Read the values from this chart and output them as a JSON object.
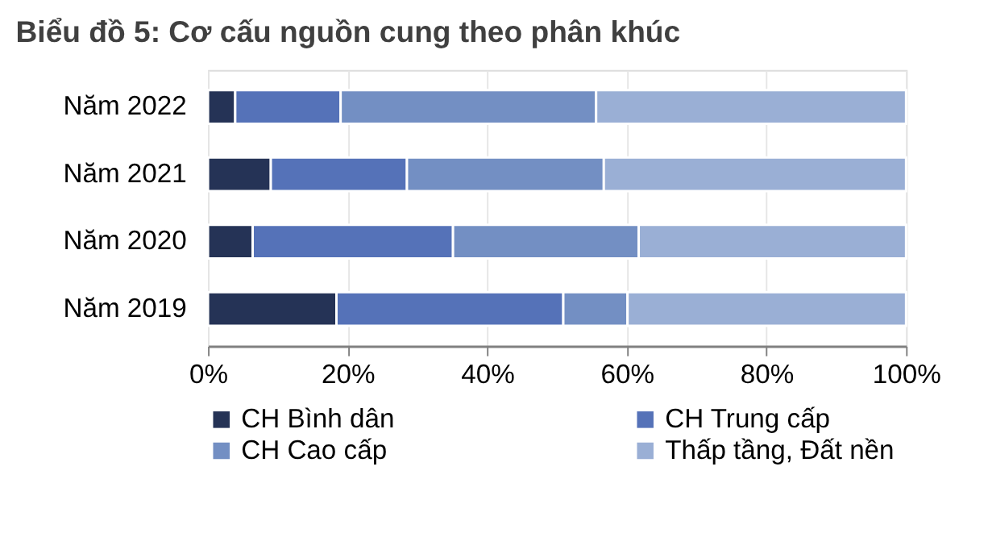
{
  "chart_data": {
    "type": "bar",
    "orientation": "horizontal",
    "stacked": true,
    "title": "Biểu đồ 5: Cơ cấu nguồn cung theo phân khúc",
    "categories": [
      "Năm 2022",
      "Năm 2021",
      "Năm 2020",
      "Năm 2019"
    ],
    "series": [
      {
        "name": "CH Bình dân",
        "color": "#253356",
        "values": [
          3.9,
          9.0,
          6.4,
          18.4
        ]
      },
      {
        "name": "CH Trung cấp",
        "color": "#5572b8",
        "values": [
          15.1,
          19.5,
          28.7,
          32.5
        ]
      },
      {
        "name": "CH Cao cấp",
        "color": "#738fc3",
        "values": [
          36.6,
          28.2,
          26.6,
          9.2
        ]
      },
      {
        "name": "Thấp tầng, Đất nền",
        "color": "#9aafd5",
        "values": [
          44.4,
          43.3,
          38.3,
          39.9
        ]
      }
    ],
    "xlim": [
      0,
      100
    ],
    "xticks": [
      {
        "value": 0,
        "label": "0%"
      },
      {
        "value": 20,
        "label": "20%"
      },
      {
        "value": 40,
        "label": "40%"
      },
      {
        "value": 60,
        "label": "60%"
      },
      {
        "value": 80,
        "label": "80%"
      },
      {
        "value": 100,
        "label": "100%"
      }
    ],
    "grid": "x",
    "legend": "bottom"
  }
}
